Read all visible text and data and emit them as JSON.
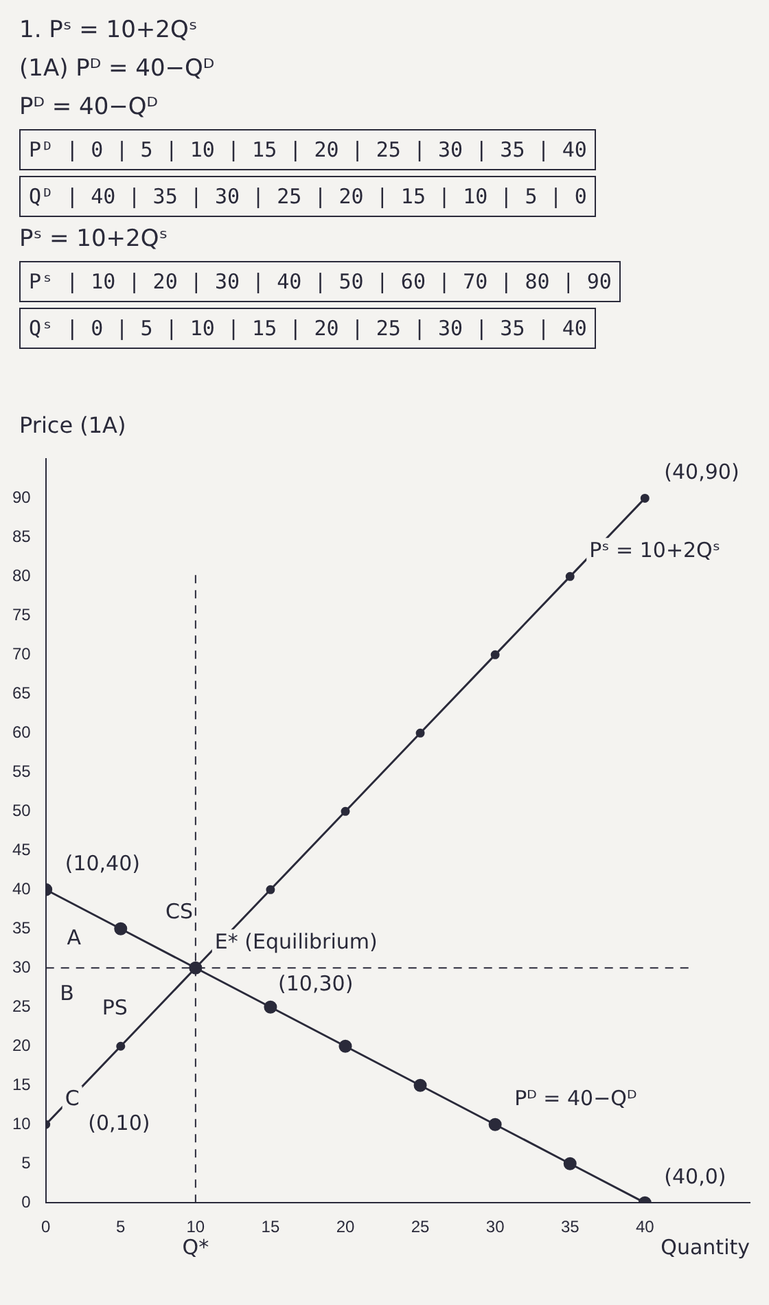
{
  "chart_data": {
    "type": "line",
    "title": "(1A)",
    "xlabel": "Quantity",
    "ylabel": "Price",
    "x": [
      0,
      5,
      10,
      15,
      20,
      25,
      30,
      35,
      40
    ],
    "series": [
      {
        "color": "#2a2a3a",
        "values": [
          10,
          20,
          30,
          40,
          50,
          60,
          70,
          80,
          90
        ]
      },
      {
        "color": "#2a2a3a",
        "values": [
          40,
          35,
          30,
          25,
          20,
          15,
          10,
          5,
          0
        ]
      }
    ],
    "xlim": [
      0,
      47
    ],
    "xticks": [
      0,
      5,
      10,
      15,
      20,
      25,
      30,
      35,
      40
    ],
    "ylim": [
      0,
      95
    ],
    "yticks": [
      0,
      5,
      10,
      15,
      20,
      25,
      30,
      35,
      40,
      45,
      50,
      55,
      60,
      65,
      70,
      75,
      80,
      85,
      90
    ],
    "grid": false,
    "legend": false,
    "marker": "circle",
    "line_style": "solid",
    "ref_lines": [
      {
        "axis": "x",
        "value": 10,
        "line_style": "dashed"
      },
      {
        "axis": "y",
        "value": 30,
        "line_style": "dashed"
      }
    ],
    "annotations": [
      "1.   Pˢ = 10+2Qˢ",
      "(1A)   Pᴰ = 40−Qᴰ",
      "Pᴰ = 40−Qᴰ",
      "Pᴰ | 0 | 5 | 10 | 15 | 20 | 25 | 30 | 35 | 40",
      "Qᴰ | 40 | 35 | 30 | 25 | 20 | 15 | 10 | 5 | 0",
      "Pˢ = 10+2Qˢ",
      "Pˢ | 10 | 20 | 30 | 40 | 50 | 60 | 70 | 80 | 90",
      "Qˢ | 0 | 5 | 10 | 15 | 20 | 25 | 30 | 35 | 40",
      {
        "text": "(10,40)",
        "x": 0,
        "y": 40
      },
      {
        "text": "C",
        "x": 0,
        "y": 10
      },
      {
        "text": "E* (Equilibrium)",
        "x": 10,
        "y": 30
      },
      {
        "text": "(40,90)",
        "x": 40,
        "y": 90
      },
      {
        "text": "Pˢ = 10+2Qˢ",
        "x": 35,
        "y": 80
      },
      {
        "text": "Pᴰ = 40−Qᴰ",
        "x": 30,
        "y": 10
      },
      {
        "text": "(40,0)",
        "x": 40,
        "y": 0
      },
      {
        "text": "Q*",
        "x": 10,
        "y": 0
      },
      "A",
      "(0,10)",
      "(10,30)",
      "CS",
      "B",
      "PS"
    ]
  }
}
